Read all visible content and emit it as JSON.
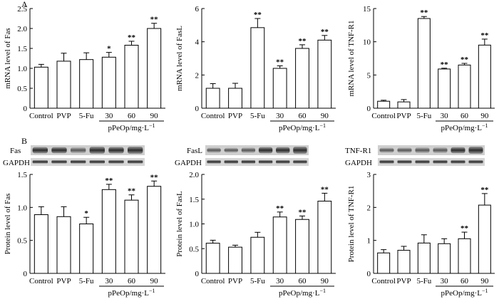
{
  "panel_labels": {
    "a": "A",
    "b": "B"
  },
  "group_label": "pPeOp/mg·L",
  "group_label_sup": "−1",
  "blot_labels": {
    "fas": "Fas",
    "fasl": "FasL",
    "tnfr1": "TNF-R1",
    "gapdh": "GAPDH"
  },
  "chart_data": [
    {
      "id": "mrna-fas",
      "type": "bar",
      "categories": [
        "Control",
        "PVP",
        "5-Fu",
        "30",
        "60",
        "90"
      ],
      "values": [
        1.03,
        1.18,
        1.22,
        1.28,
        1.58,
        2.0
      ],
      "errors": [
        0.07,
        0.2,
        0.17,
        0.12,
        0.1,
        0.13
      ],
      "significance": [
        "",
        "",
        "",
        "*",
        "**",
        "**"
      ],
      "ylabel": "mRNA level of Fas",
      "ylim": [
        0,
        2.5
      ],
      "yticks": [
        "0",
        "0.5",
        "1.0",
        "1.5",
        "2.0",
        "2.5"
      ],
      "ytick_values": [
        0,
        0.5,
        1,
        1.5,
        2,
        2.5
      ]
    },
    {
      "id": "mrna-fasl",
      "type": "bar",
      "categories": [
        "Control",
        "PVP",
        "5-Fu",
        "30",
        "60",
        "90"
      ],
      "values": [
        1.2,
        1.2,
        4.85,
        2.4,
        3.6,
        4.1
      ],
      "errors": [
        0.28,
        0.3,
        0.55,
        0.15,
        0.22,
        0.28
      ],
      "significance": [
        "",
        "",
        "**",
        "**",
        "**",
        "**"
      ],
      "ylabel": "mRNA level of FasL",
      "ylim": [
        0,
        6
      ],
      "yticks": [
        "0",
        "2",
        "4",
        "6"
      ],
      "ytick_values": [
        0,
        2,
        4,
        6
      ]
    },
    {
      "id": "mrna-tnfr1",
      "type": "bar",
      "categories": [
        "Control",
        "PVP",
        "5-Fu",
        "30",
        "60",
        "90"
      ],
      "values": [
        1.05,
        0.95,
        13.5,
        5.9,
        6.5,
        9.5
      ],
      "errors": [
        0.15,
        0.35,
        0.3,
        0.12,
        0.25,
        0.9
      ],
      "significance": [
        "",
        "",
        "**",
        "**",
        "**",
        "**"
      ],
      "ylabel": "mRNA level of TNF-R1",
      "ylim": [
        0,
        15
      ],
      "yticks": [
        "0",
        "5",
        "10",
        "15"
      ],
      "ytick_values": [
        0,
        5,
        10,
        15
      ]
    },
    {
      "id": "protein-fas",
      "type": "bar",
      "categories": [
        "Control",
        "PVP",
        "5-Fu",
        "30",
        "60",
        "90"
      ],
      "values": [
        0.89,
        0.86,
        0.75,
        1.27,
        1.11,
        1.32
      ],
      "errors": [
        0.12,
        0.15,
        0.1,
        0.08,
        0.08,
        0.08
      ],
      "significance": [
        "",
        "",
        "*",
        "**",
        "**",
        "**"
      ],
      "ylabel": "Protein level of Fas",
      "ylim": [
        0,
        1.5
      ],
      "yticks": [
        "0",
        "0.5",
        "1.0",
        "1.5"
      ],
      "ytick_values": [
        0,
        0.5,
        1,
        1.5
      ]
    },
    {
      "id": "protein-fasl",
      "type": "bar",
      "categories": [
        "Control",
        "PVP",
        "5-Fu",
        "30",
        "60",
        "90"
      ],
      "values": [
        0.61,
        0.53,
        0.73,
        1.14,
        1.09,
        1.46
      ],
      "errors": [
        0.06,
        0.04,
        0.1,
        0.1,
        0.07,
        0.16
      ],
      "significance": [
        "",
        "",
        "",
        "**",
        "**",
        "**"
      ],
      "ylabel": "Protein level of FasL",
      "ylim": [
        0,
        2.0
      ],
      "yticks": [
        "0",
        "0.5",
        "1.0",
        "1.5",
        "2.0"
      ],
      "ytick_values": [
        0,
        0.5,
        1,
        1.5,
        2
      ]
    },
    {
      "id": "protein-tnfr1",
      "type": "bar",
      "categories": [
        "Control",
        "PVP",
        "5-Fu",
        "30",
        "60",
        "90"
      ],
      "values": [
        0.62,
        0.7,
        0.92,
        0.9,
        1.05,
        2.07
      ],
      "errors": [
        0.1,
        0.12,
        0.25,
        0.15,
        0.2,
        0.35
      ],
      "significance": [
        "",
        "",
        "",
        "",
        "**",
        "**"
      ],
      "ylabel": "Protein level of TNF-R1",
      "ylim": [
        0,
        3
      ],
      "yticks": [
        "0",
        "1",
        "2",
        "3"
      ],
      "ytick_values": [
        0,
        1,
        2,
        3
      ]
    }
  ]
}
